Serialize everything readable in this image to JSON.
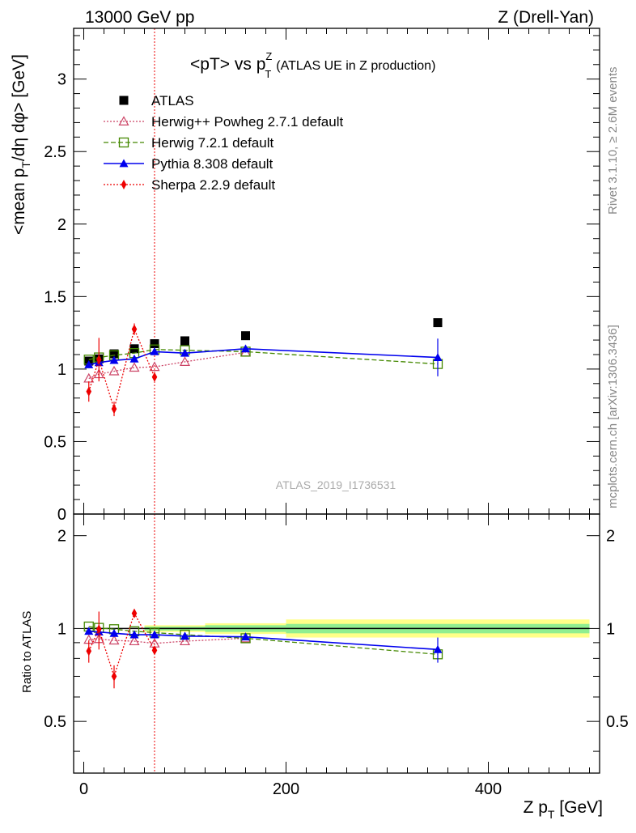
{
  "header": {
    "left": "13000 GeV pp",
    "right": "Z (Drell-Yan)"
  },
  "side_labels": {
    "rivet": "Rivet 3.1.10, ≥ 2.6M events",
    "mcplots": "mcplots.cern.ch [arXiv:1306.3436]"
  },
  "chart_data": {
    "type": "scatter",
    "title_main": "<pT> vs p",
    "title_sup": "Z",
    "title_sub": "T",
    "title_extra": "(ATLAS UE in Z production)",
    "watermark": "ATLAS_2019_I1736531",
    "ylabel_parts": [
      "<mean p",
      "T",
      "/dη dφ> [GeV]"
    ],
    "ratio_ylabel": "Ratio to ATLAS",
    "xlabel_parts": [
      "Z p",
      "T",
      " [GeV]"
    ],
    "xlim": [
      -10,
      510
    ],
    "ylim": [
      0,
      3.35
    ],
    "ratio_ylim": [
      0.34,
      2.35
    ],
    "x_ticks": [
      "0",
      "200",
      "400"
    ],
    "y_ticks": [
      "0",
      "0.5",
      "1",
      "1.5",
      "2",
      "2.5",
      "3"
    ],
    "ratio_y_ticks": [
      "0.5",
      "1",
      "2"
    ],
    "cut_line_x": 70,
    "grid": false,
    "legend_position": "top-left",
    "bands": [
      {
        "x0": 60,
        "x1": 120,
        "inner": [
          0.985,
          1.015
        ],
        "outer": [
          0.975,
          1.025
        ]
      },
      {
        "x0": 120,
        "x1": 200,
        "inner": [
          0.975,
          1.025
        ],
        "outer": [
          0.96,
          1.04
        ]
      },
      {
        "x0": 200,
        "x1": 500,
        "inner": [
          0.965,
          1.035
        ],
        "outer": [
          0.935,
          1.07
        ]
      }
    ],
    "series": [
      {
        "name": "ATLAS",
        "key": "atlas",
        "color": "#000000",
        "marker": "square-filled",
        "line": "none",
        "x": [
          5,
          15,
          30,
          50,
          70,
          100,
          160,
          350
        ],
        "y": [
          1.055,
          1.07,
          1.105,
          1.14,
          1.175,
          1.195,
          1.23,
          1.32
        ],
        "ratio": [
          1,
          1,
          1,
          1,
          1,
          1,
          1,
          1
        ]
      },
      {
        "name": "Herwig++ Powheg 2.7.1 default",
        "key": "herwigpp",
        "color": "#cc4466",
        "marker": "triangle-open",
        "line": "dotted",
        "x": [
          5,
          15,
          30,
          50,
          70,
          100,
          160
        ],
        "y": [
          0.935,
          0.965,
          0.985,
          1.01,
          1.015,
          1.05,
          1.115
        ],
        "ratio": [
          0.92,
          0.925,
          0.915,
          0.91,
          0.895,
          0.91,
          0.93
        ]
      },
      {
        "name": "Herwig 7.2.1 default",
        "key": "herwig7",
        "color": "#448800",
        "marker": "square-open",
        "line": "dashed",
        "x": [
          5,
          15,
          30,
          50,
          70,
          100,
          160,
          350
        ],
        "y": [
          1.065,
          1.08,
          1.095,
          1.11,
          1.135,
          1.13,
          1.12,
          1.035
        ],
        "ratio": [
          1.015,
          1.005,
          0.995,
          0.98,
          0.97,
          0.955,
          0.93,
          0.825
        ]
      },
      {
        "name": "Pythia 8.308 default",
        "key": "pythia",
        "color": "#0000ee",
        "marker": "triangle-filled",
        "line": "solid",
        "x": [
          5,
          15,
          30,
          50,
          70,
          100,
          160,
          350
        ],
        "y": [
          1.03,
          1.045,
          1.06,
          1.07,
          1.12,
          1.11,
          1.14,
          1.08
        ],
        "ratio": [
          0.98,
          0.975,
          0.965,
          0.955,
          0.955,
          0.945,
          0.94,
          0.855
        ],
        "err": [
          0.01,
          0.01,
          0.01,
          0.01,
          0.01,
          0.01,
          0.02,
          0.13
        ],
        "ratio_err": [
          0.01,
          0.01,
          0.01,
          0.01,
          0.01,
          0.01,
          0.015,
          0.08
        ]
      },
      {
        "name": "Sherpa 2.2.9 default",
        "key": "sherpa",
        "color": "#ee0000",
        "marker": "diamond-filled",
        "line": "dotted",
        "x": [
          5,
          15,
          30,
          50,
          70
        ],
        "y": [
          0.845,
          1.065,
          0.725,
          1.275,
          0.945
        ],
        "ratio": [
          0.845,
          0.995,
          0.7,
          1.12,
          0.85
        ],
        "err": [
          0.07,
          0.15,
          0.05,
          0.04,
          0.02
        ],
        "ratio_err": [
          0.07,
          0.14,
          0.06,
          0.035,
          0.02
        ]
      }
    ]
  }
}
